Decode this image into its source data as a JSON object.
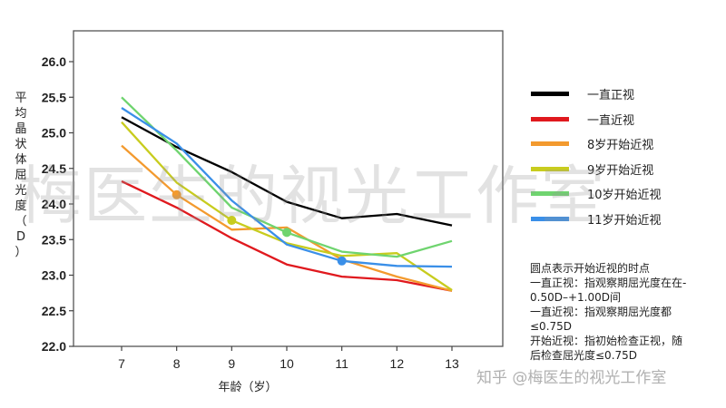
{
  "chart_data": {
    "type": "line",
    "title": "",
    "xlabel": "年龄（岁）",
    "ylabel": "平均晶状体屈光度（D）",
    "x": [
      7,
      8,
      9,
      10,
      11,
      12,
      13
    ],
    "xlim": [
      6.0,
      13.9
    ],
    "ylim": [
      22.0,
      26.4
    ],
    "yticks": [
      22.0,
      22.5,
      23.0,
      23.5,
      24.0,
      24.5,
      25.0,
      25.5,
      26.0
    ],
    "ytick_labels": [
      "22.0",
      "22.5",
      "23.0",
      "23.5",
      "24.0",
      "24.5",
      "25.0",
      "25.5",
      "26.0"
    ],
    "xtick_labels": [
      "7",
      "8",
      "9",
      "10",
      "11",
      "12",
      "13"
    ],
    "grid": false,
    "legend_position": "right",
    "series": [
      {
        "name": "一直正视",
        "color": "#000000",
        "values": [
          25.22,
          24.8,
          24.45,
          24.03,
          23.8,
          23.86,
          23.7
        ],
        "marker_at": null
      },
      {
        "name": "一直近视",
        "color": "#e0191e",
        "values": [
          24.32,
          23.95,
          23.52,
          23.15,
          22.98,
          22.93,
          22.78
        ],
        "marker_at": null
      },
      {
        "name": "8岁开始近视",
        "color": "#f39a2e",
        "values": [
          24.82,
          24.13,
          23.64,
          23.67,
          23.22,
          22.98,
          22.78
        ],
        "marker_at": 8
      },
      {
        "name": "9岁开始近视",
        "color": "#c8cc1e",
        "values": [
          25.15,
          24.3,
          23.77,
          23.45,
          23.27,
          23.31,
          22.79
        ],
        "marker_at": 9
      },
      {
        "name": "10岁开始近视",
        "color": "#6fd46f",
        "values": [
          25.5,
          24.75,
          23.95,
          23.6,
          23.33,
          23.26,
          23.48
        ],
        "marker_at": 10
      },
      {
        "name": "11岁开始近视",
        "color": "#3a8fe8",
        "values": [
          25.35,
          24.85,
          24.05,
          23.43,
          23.2,
          23.13,
          23.12
        ],
        "marker_at": 11
      }
    ],
    "annotations": [
      "圆点表示开始近视的时点",
      "一直正视：指观察期屈光度在在-0.50D–+1.00D间",
      "一直近视：指观察期屈光度都≤0.75D",
      "开始近视：指初始检查正视，随后检查屈光度≤0.75D"
    ]
  },
  "axis": {
    "ylabel_chars": [
      "平",
      "均",
      "晶",
      "状",
      "体",
      "屈",
      "光",
      "度",
      "（",
      "D",
      "）"
    ],
    "xlabel": "年龄（岁）"
  },
  "legend": {
    "items": [
      {
        "label": "一直正视",
        "color": "#000000"
      },
      {
        "label": "一直近视",
        "color": "#e0191e"
      },
      {
        "label": "8岁开始近视",
        "color": "#f39a2e"
      },
      {
        "label": "9岁开始近视",
        "color": "#c8cc1e"
      },
      {
        "label": "10岁开始近视",
        "color": "#6fd46f"
      },
      {
        "label": "11岁开始近视",
        "color": "#3a8fe8"
      }
    ]
  },
  "notes": {
    "lines": [
      "圆点表示开始近视的时点",
      "一直正视：指观察期屈光度在在-",
      "0.50D–+1.00D间",
      "一直近视：指观察期屈光度都",
      "≤0.75D",
      "开始近视：指初始检查正视，随",
      "后检查屈光度≤0.75D"
    ]
  },
  "watermark": {
    "text": "梅医生的视光工作室",
    "footer": "知乎 @梅医生的视光工作室"
  }
}
